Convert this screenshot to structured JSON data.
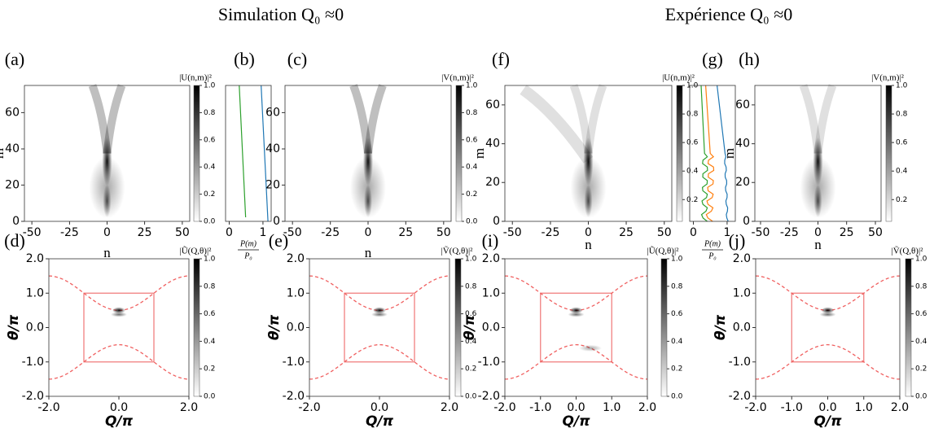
{
  "headings": [
    "Simulation Q₀ ≈0",
    "Expérience Q₀ ≈0"
  ],
  "panels": [
    {
      "label": "(a)",
      "xlabel": "n",
      "ylabel": "m",
      "xticks": [
        "-50",
        "-25",
        "0",
        "25",
        "50"
      ],
      "yticks": [
        "0",
        "20",
        "40",
        "60"
      ],
      "colorbar": {
        "label": "|U(n,m)|²",
        "ticks": [
          "0.0",
          "0.2",
          "0.4",
          "0.6",
          "0.8",
          "1.0"
        ]
      }
    },
    {
      "label": "(b)",
      "xticks": [
        "0",
        "1"
      ],
      "xlabel": {
        "numerator": "P(m)",
        "denominator": "P₀"
      }
    },
    {
      "label": "(c)",
      "xlabel": "n",
      "xticks": [
        "-50",
        "-25",
        "0",
        "25",
        "50"
      ],
      "yticks": [
        "0",
        "20",
        "40",
        "60"
      ],
      "colorbar": {
        "label": "|V(n,m)|²",
        "ticks": [
          "0.0",
          "0.2",
          "0.4",
          "0.6",
          "0.8",
          "1.0"
        ]
      }
    },
    {
      "label": "(f)",
      "xlabel": "n",
      "ylabel": "m",
      "xticks": [
        "-50",
        "-25",
        "0",
        "25",
        "50"
      ],
      "yticks": [
        "0",
        "20",
        "40",
        "60"
      ],
      "colorbar": {
        "label": "|U(n,m)|²",
        "ticks": [
          "0.2",
          "0.4",
          "0.6",
          "0.8",
          "1.0"
        ]
      }
    },
    {
      "label": "(g)",
      "xticks": [
        "0",
        "1"
      ],
      "xlabel": {
        "numerator": "P(m)",
        "denominator": "P₀"
      }
    },
    {
      "label": "(h)",
      "xlabel": "n",
      "ylabel": "m",
      "xticks": [
        "-50",
        "-25",
        "0",
        "25",
        "50"
      ],
      "yticks": [
        "0",
        "20",
        "40",
        "60"
      ],
      "colorbar": {
        "label": "|V(n,m)|²",
        "ticks": [
          "0.2",
          "0.4",
          "0.6",
          "0.8",
          "1.0"
        ]
      }
    },
    {
      "label": "(d)",
      "xlabel": "Q/π",
      "ylabel": "θ/π",
      "xticks": [
        "-2.0",
        "0.0",
        "2.0"
      ],
      "yticks": [
        "-2.0",
        "-1.0",
        "0.0",
        "1.0",
        "2.0"
      ],
      "colorbar": {
        "label": "|Ũ(Q,θ)|²",
        "ticks": [
          "0.0",
          "0.2",
          "0.4",
          "0.6",
          "0.8",
          "1.0"
        ]
      }
    },
    {
      "label": "(e)",
      "xlabel": "Q/π",
      "ylabel": "θ/π",
      "xticks": [
        "-2.0",
        "0.0",
        "2.0"
      ],
      "yticks": [
        "-2.0",
        "-1.0",
        "0.0",
        "1.0",
        "2.0"
      ],
      "colorbar": {
        "label": "|Ṽ(Q,θ)|²",
        "ticks": [
          "0.0",
          "0.2",
          "0.4",
          "0.6",
          "0.8",
          "1.0"
        ]
      }
    },
    {
      "label": "(i)",
      "xlabel": "Q/π",
      "ylabel": "θ/π",
      "xticks": [
        "-2.0",
        "-1.0",
        "0.0",
        "1.0",
        "2.0"
      ],
      "yticks": [
        "-2.0",
        "-1.0",
        "0.0",
        "1.0",
        "2.0"
      ],
      "colorbar": {
        "label": "|Ũ(Q,θ)|²",
        "ticks": [
          "0.0",
          "0.2",
          "0.4",
          "0.6",
          "0.8",
          "1.0"
        ]
      }
    },
    {
      "label": "(j)",
      "xlabel": "Q/π",
      "ylabel": "θ/π",
      "xticks": [
        "-2.0",
        "-1.0",
        "0.0",
        "1.0",
        "2.0"
      ],
      "yticks": [
        "-2.0",
        "-1.0",
        "0.0",
        "1.0",
        "2.0"
      ],
      "colorbar": {
        "label": "|Ṽ(Q,θ)|²",
        "ticks": [
          "0.0",
          "0.2",
          "0.4",
          "0.6",
          "0.8",
          "1.0"
        ]
      }
    }
  ]
}
